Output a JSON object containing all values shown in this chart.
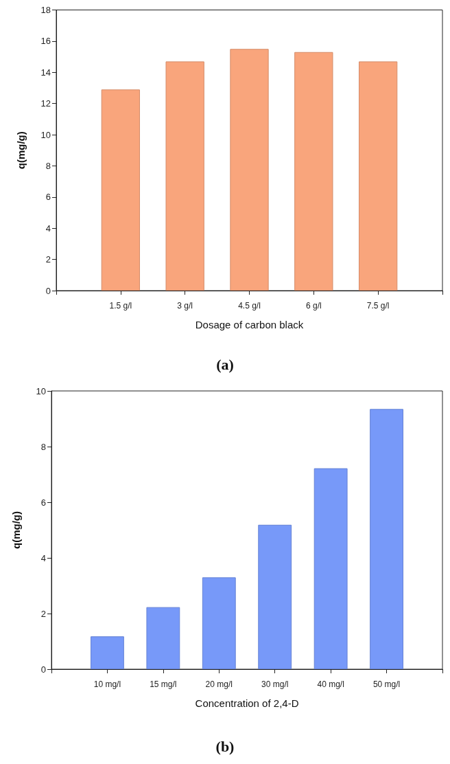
{
  "chart_data": [
    {
      "type": "bar",
      "title": "(a)",
      "xlabel": "Dosage of carbon black",
      "ylabel": "q(mg/g)",
      "categories": [
        "1.5 g/l",
        "3 g/l",
        "4.5 g/l",
        "6 g/l",
        "7.5 g/l"
      ],
      "values": [
        12.9,
        14.7,
        15.5,
        15.3,
        14.7
      ],
      "color": "#f9a57c",
      "ylim": [
        0,
        18
      ],
      "yticks": [
        0,
        2,
        4,
        6,
        8,
        10,
        12,
        14,
        16,
        18
      ],
      "grid": false
    },
    {
      "type": "bar",
      "title": "(b)",
      "xlabel": "Concentration of 2,4-D",
      "ylabel": "q(mg/g)",
      "categories": [
        "10 mg/l",
        "15 mg/l",
        "20 mg/l",
        "30 mg/l",
        "40 mg/l",
        "50 mg/l"
      ],
      "values": [
        1.18,
        2.23,
        3.3,
        5.19,
        7.22,
        9.35
      ],
      "color": "#7799f9",
      "ylim": [
        0,
        10
      ],
      "yticks": [
        0,
        2,
        4,
        6,
        8,
        10
      ],
      "grid": false
    }
  ]
}
